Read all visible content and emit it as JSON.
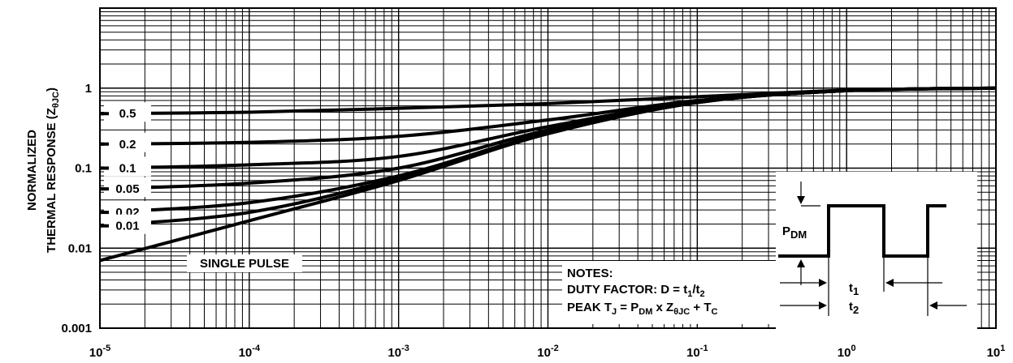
{
  "chart_data": {
    "type": "line",
    "title": "",
    "xlabel": "",
    "ylabel_line1": "NORMALIZED",
    "ylabel_line2": "THERMAL RESPONSE (Z",
    "ylabel_sub": "θJC",
    "ylabel_end": ")",
    "x_scale": "log",
    "y_scale": "log",
    "xlim": [
      1e-05,
      10
    ],
    "ylim": [
      0.001,
      10
    ],
    "grid": true,
    "x_ticks": [
      {
        "base": "10",
        "exp": "-5",
        "value": 1e-05
      },
      {
        "base": "10",
        "exp": "-4",
        "value": 0.0001
      },
      {
        "base": "10",
        "exp": "-3",
        "value": 0.001
      },
      {
        "base": "10",
        "exp": "-2",
        "value": 0.01
      },
      {
        "base": "10",
        "exp": "-1",
        "value": 0.1
      },
      {
        "base": "10",
        "exp": "0",
        "value": 1
      },
      {
        "base": "10",
        "exp": "1",
        "value": 10
      }
    ],
    "y_ticks": [
      {
        "label": "1",
        "value": 1
      },
      {
        "label": "0.1",
        "value": 0.1
      },
      {
        "label": "0.01",
        "value": 0.01
      },
      {
        "label": "0.001",
        "value": 0.001
      }
    ],
    "series": [
      {
        "name": "0.5",
        "x": [
          1e-05,
          0.0001,
          0.001,
          0.01,
          0.1,
          1,
          10
        ],
        "y": [
          0.48,
          0.5,
          0.56,
          0.64,
          0.78,
          0.94,
          1.0
        ]
      },
      {
        "name": "0.2",
        "x": [
          1e-05,
          0.0001,
          0.001,
          0.01,
          0.1,
          1,
          10
        ],
        "y": [
          0.2,
          0.21,
          0.25,
          0.4,
          0.7,
          0.93,
          1.0
        ]
      },
      {
        "name": "0.1",
        "x": [
          1e-05,
          0.0001,
          0.001,
          0.01,
          0.1,
          1,
          10
        ],
        "y": [
          0.1,
          0.11,
          0.14,
          0.33,
          0.68,
          0.93,
          1.0
        ]
      },
      {
        "name": "0.05",
        "x": [
          1e-05,
          0.0001,
          0.001,
          0.01,
          0.1,
          1,
          10
        ],
        "y": [
          0.055,
          0.065,
          0.1,
          0.3,
          0.67,
          0.93,
          1.0
        ]
      },
      {
        "name": "0.02",
        "x": [
          1e-05,
          0.0001,
          0.001,
          0.01,
          0.1,
          1,
          10
        ],
        "y": [
          0.028,
          0.037,
          0.08,
          0.28,
          0.66,
          0.93,
          1.0
        ]
      },
      {
        "name": "0.01",
        "x": [
          1e-05,
          0.0001,
          0.001,
          0.01,
          0.1,
          1,
          10
        ],
        "y": [
          0.019,
          0.028,
          0.075,
          0.27,
          0.66,
          0.93,
          1.0
        ]
      },
      {
        "name": "SINGLE PULSE",
        "x": [
          1e-05,
          0.0001,
          0.001,
          0.01,
          0.1,
          1,
          10
        ],
        "y": [
          0.007,
          0.022,
          0.07,
          0.27,
          0.66,
          0.93,
          1.0
        ]
      }
    ],
    "notes": {
      "heading": "NOTES:",
      "duty_line": {
        "text": "DUTY FACTOR: D = t",
        "s1": "1",
        "mid": "/t",
        "s2": "2"
      },
      "peak_line": {
        "t1": "PEAK T",
        "s1": "J",
        "t2": " = P",
        "s2": "DM",
        "t3": " x Z",
        "s3": "θJC",
        "t4": " + T",
        "s4": "C"
      }
    },
    "inset": {
      "pdm": "P",
      "pdm_sub": "DM",
      "t1": "t",
      "t1_sub": "1",
      "t2": "t",
      "t2_sub": "2"
    }
  }
}
